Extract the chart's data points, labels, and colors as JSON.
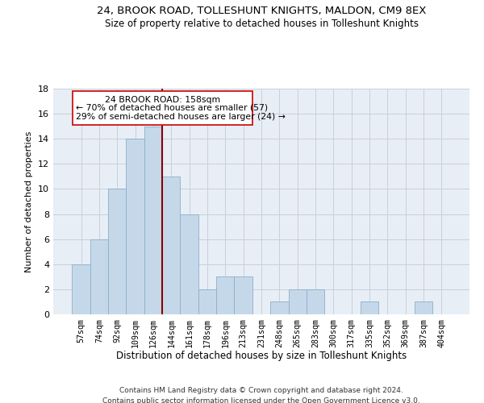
{
  "title": "24, BROOK ROAD, TOLLESHUNT KNIGHTS, MALDON, CM9 8EX",
  "subtitle": "Size of property relative to detached houses in Tolleshunt Knights",
  "xlabel": "Distribution of detached houses by size in Tolleshunt Knights",
  "ylabel": "Number of detached properties",
  "footer1": "Contains HM Land Registry data © Crown copyright and database right 2024.",
  "footer2": "Contains public sector information licensed under the Open Government Licence v3.0.",
  "bar_color": "#c5d8ea",
  "bar_edge_color": "#8aafc8",
  "grid_color": "#c8d0dc",
  "background_color": "#e8eef5",
  "vline_color": "#8b0000",
  "annotation_box_color": "#cc0000",
  "annotation_text1": "24 BROOK ROAD: 158sqm",
  "annotation_text2": "← 70% of detached houses are smaller (57)",
  "annotation_text3": "29% of semi-detached houses are larger (24) →",
  "categories": [
    "57sqm",
    "74sqm",
    "92sqm",
    "109sqm",
    "126sqm",
    "144sqm",
    "161sqm",
    "178sqm",
    "196sqm",
    "213sqm",
    "231sqm",
    "248sqm",
    "265sqm",
    "283sqm",
    "300sqm",
    "317sqm",
    "335sqm",
    "352sqm",
    "369sqm",
    "387sqm",
    "404sqm"
  ],
  "values": [
    4,
    6,
    10,
    14,
    15,
    11,
    8,
    2,
    3,
    3,
    0,
    1,
    2,
    2,
    0,
    0,
    1,
    0,
    0,
    1,
    0
  ],
  "vline_x": 4.5,
  "ylim": [
    0,
    18
  ],
  "yticks": [
    0,
    2,
    4,
    6,
    8,
    10,
    12,
    14,
    16,
    18
  ]
}
